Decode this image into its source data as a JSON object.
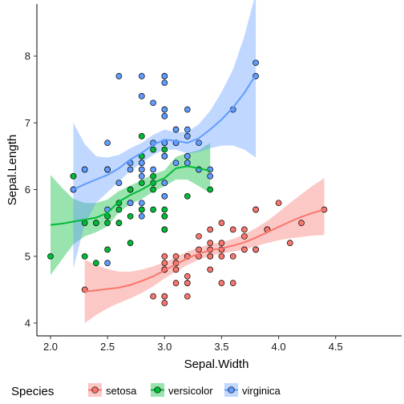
{
  "chart_data": {
    "type": "scatter",
    "xlabel": "Sepal.Width",
    "ylabel": "Sepal.Length",
    "xlim": [
      1.9,
      4.5
    ],
    "ylim": [
      3.8,
      8.4
    ],
    "xticks": [
      "2.0",
      "2.5",
      "3.0",
      "3.5",
      "4.0",
      "4.5"
    ],
    "yticks": [
      "4",
      "5",
      "6",
      "7",
      "8"
    ],
    "grid": false,
    "legend": {
      "title": "Species",
      "placement": "bottom"
    },
    "smoother": "loess with confidence band",
    "series": [
      {
        "name": "setosa",
        "color": "#F8766D",
        "points": [
          [
            2.3,
            4.5
          ],
          [
            2.9,
            4.4
          ],
          [
            3.0,
            4.3
          ],
          [
            3.0,
            4.4
          ],
          [
            3.2,
            4.4
          ],
          [
            3.0,
            4.8
          ],
          [
            3.0,
            4.8
          ],
          [
            3.0,
            4.9
          ],
          [
            3.1,
            4.9
          ],
          [
            3.1,
            4.9
          ],
          [
            3.1,
            4.8
          ],
          [
            3.0,
            5.0
          ],
          [
            3.2,
            5.0
          ],
          [
            3.2,
            4.7
          ],
          [
            3.2,
            4.6
          ],
          [
            3.1,
            4.6
          ],
          [
            3.2,
            5.0
          ],
          [
            3.3,
            5.0
          ],
          [
            3.4,
            5.0
          ],
          [
            3.4,
            4.8
          ],
          [
            3.4,
            5.1
          ],
          [
            3.3,
            5.1
          ],
          [
            3.5,
            5.0
          ],
          [
            3.5,
            5.1
          ],
          [
            3.5,
            5.2
          ],
          [
            3.4,
            5.2
          ],
          [
            3.4,
            5.4
          ],
          [
            3.5,
            5.5
          ],
          [
            3.6,
            5.0
          ],
          [
            3.6,
            4.6
          ],
          [
            3.7,
            5.1
          ],
          [
            3.7,
            5.4
          ],
          [
            3.7,
            5.3
          ],
          [
            3.8,
            5.1
          ],
          [
            3.8,
            5.1
          ],
          [
            3.8,
            5.7
          ],
          [
            3.9,
            5.4
          ],
          [
            3.9,
            5.4
          ],
          [
            3.8,
            5.7
          ],
          [
            4.0,
            5.8
          ],
          [
            4.1,
            5.2
          ],
          [
            4.2,
            5.5
          ],
          [
            4.4,
            5.7
          ],
          [
            3.6,
            5.4
          ],
          [
            3.5,
            4.6
          ],
          [
            3.1,
            5.0
          ],
          [
            3.0,
            4.4
          ],
          [
            3.2,
            4.6
          ],
          [
            3.3,
            5.3
          ],
          [
            3.4,
            5.0
          ]
        ],
        "smooth": [
          [
            2.3,
            4.47
          ],
          [
            2.4,
            4.49
          ],
          [
            2.5,
            4.51
          ],
          [
            2.6,
            4.53
          ],
          [
            2.7,
            4.57
          ],
          [
            2.8,
            4.63
          ],
          [
            2.9,
            4.7
          ],
          [
            3.0,
            4.79
          ],
          [
            3.1,
            4.88
          ],
          [
            3.2,
            4.97
          ],
          [
            3.3,
            5.04
          ],
          [
            3.4,
            5.09
          ],
          [
            3.5,
            5.12
          ],
          [
            3.6,
            5.16
          ],
          [
            3.7,
            5.21
          ],
          [
            3.8,
            5.28
          ],
          [
            3.9,
            5.36
          ],
          [
            4.0,
            5.44
          ],
          [
            4.1,
            5.52
          ],
          [
            4.2,
            5.59
          ],
          [
            4.3,
            5.65
          ],
          [
            4.4,
            5.7
          ]
        ],
        "band": [
          [
            2.3,
            4.0,
            4.95
          ],
          [
            2.4,
            4.12,
            4.87
          ],
          [
            2.5,
            4.22,
            4.81
          ],
          [
            2.6,
            4.3,
            4.77
          ],
          [
            2.7,
            4.37,
            4.77
          ],
          [
            2.8,
            4.45,
            4.8
          ],
          [
            2.9,
            4.55,
            4.85
          ],
          [
            3.0,
            4.67,
            4.91
          ],
          [
            3.1,
            4.77,
            4.99
          ],
          [
            3.2,
            4.87,
            5.07
          ],
          [
            3.3,
            4.95,
            5.13
          ],
          [
            3.4,
            5.01,
            5.18
          ],
          [
            3.5,
            5.04,
            5.21
          ],
          [
            3.6,
            5.07,
            5.26
          ],
          [
            3.7,
            5.1,
            5.33
          ],
          [
            3.8,
            5.15,
            5.42
          ],
          [
            3.9,
            5.2,
            5.53
          ],
          [
            4.0,
            5.24,
            5.66
          ],
          [
            4.1,
            5.27,
            5.8
          ],
          [
            4.2,
            5.29,
            5.93
          ],
          [
            4.3,
            5.31,
            6.06
          ],
          [
            4.4,
            5.32,
            6.17
          ]
        ]
      },
      {
        "name": "versicolor",
        "color": "#00BA38",
        "points": [
          [
            2.0,
            5.0
          ],
          [
            2.2,
            6.2
          ],
          [
            2.2,
            6.0
          ],
          [
            2.3,
            5.5
          ],
          [
            2.3,
            6.3
          ],
          [
            2.3,
            5.0
          ],
          [
            2.4,
            5.5
          ],
          [
            2.4,
            5.5
          ],
          [
            2.4,
            4.9
          ],
          [
            2.5,
            5.5
          ],
          [
            2.5,
            5.6
          ],
          [
            2.5,
            6.3
          ],
          [
            2.6,
            5.8
          ],
          [
            2.6,
            5.5
          ],
          [
            2.6,
            5.7
          ],
          [
            2.7,
            5.2
          ],
          [
            2.7,
            5.8
          ],
          [
            2.7,
            6.0
          ],
          [
            2.7,
            5.6
          ],
          [
            2.8,
            5.7
          ],
          [
            2.8,
            6.5
          ],
          [
            2.8,
            6.1
          ],
          [
            2.8,
            6.8
          ],
          [
            2.9,
            6.1
          ],
          [
            2.9,
            6.2
          ],
          [
            2.9,
            6.0
          ],
          [
            2.9,
            5.7
          ],
          [
            3.0,
            5.9
          ],
          [
            3.0,
            5.6
          ],
          [
            3.0,
            5.6
          ],
          [
            3.0,
            6.1
          ],
          [
            3.0,
            5.4
          ],
          [
            3.0,
            6.7
          ],
          [
            3.0,
            5.7
          ],
          [
            3.1,
            6.9
          ],
          [
            3.1,
            6.7
          ],
          [
            3.2,
            6.4
          ],
          [
            3.2,
            5.9
          ],
          [
            3.3,
            6.3
          ],
          [
            3.4,
            6.0
          ],
          [
            2.9,
            6.6
          ],
          [
            2.8,
            6.4
          ],
          [
            2.5,
            6.3
          ],
          [
            3.0,
            6.6
          ],
          [
            2.8,
            5.7
          ],
          [
            2.6,
            5.5
          ],
          [
            2.7,
            6.0
          ],
          [
            3.0,
            5.4
          ],
          [
            2.2,
            6.2
          ],
          [
            2.5,
            5.1
          ]
        ],
        "smooth": [
          [
            2.0,
            5.47
          ],
          [
            2.1,
            5.49
          ],
          [
            2.2,
            5.52
          ],
          [
            2.3,
            5.55
          ],
          [
            2.4,
            5.58
          ],
          [
            2.5,
            5.65
          ],
          [
            2.6,
            5.82
          ],
          [
            2.7,
            5.92
          ],
          [
            2.8,
            6.0
          ],
          [
            2.9,
            6.1
          ],
          [
            3.0,
            6.17
          ],
          [
            3.1,
            6.32
          ],
          [
            3.2,
            6.35
          ],
          [
            3.3,
            6.32
          ],
          [
            3.4,
            6.28
          ]
        ],
        "band": [
          [
            2.0,
            4.72,
            6.22
          ],
          [
            2.1,
            4.95,
            6.03
          ],
          [
            2.2,
            5.18,
            5.86
          ],
          [
            2.3,
            5.3,
            5.8
          ],
          [
            2.4,
            5.36,
            5.8
          ],
          [
            2.5,
            5.45,
            5.85
          ],
          [
            2.6,
            5.66,
            5.98
          ],
          [
            2.7,
            5.78,
            6.06
          ],
          [
            2.8,
            5.86,
            6.14
          ],
          [
            2.9,
            5.97,
            6.23
          ],
          [
            3.0,
            6.05,
            6.29
          ],
          [
            3.1,
            6.15,
            6.49
          ],
          [
            3.2,
            6.15,
            6.55
          ],
          [
            3.3,
            6.05,
            6.59
          ],
          [
            3.4,
            5.95,
            6.7
          ]
        ]
      },
      {
        "name": "virginica",
        "color": "#619CFF",
        "points": [
          [
            2.2,
            6.0
          ],
          [
            2.5,
            4.9
          ],
          [
            2.5,
            5.7
          ],
          [
            2.5,
            6.3
          ],
          [
            2.5,
            6.7
          ],
          [
            2.6,
            7.7
          ],
          [
            2.6,
            6.1
          ],
          [
            2.7,
            5.8
          ],
          [
            2.7,
            6.3
          ],
          [
            2.7,
            5.8
          ],
          [
            2.7,
            6.4
          ],
          [
            2.8,
            7.7
          ],
          [
            2.8,
            6.3
          ],
          [
            2.8,
            6.4
          ],
          [
            2.8,
            7.4
          ],
          [
            2.8,
            5.8
          ],
          [
            2.8,
            6.2
          ],
          [
            2.8,
            5.6
          ],
          [
            2.9,
            6.3
          ],
          [
            2.9,
            7.3
          ],
          [
            3.0,
            7.7
          ],
          [
            3.0,
            7.2
          ],
          [
            3.0,
            6.5
          ],
          [
            3.0,
            6.1
          ],
          [
            3.0,
            5.9
          ],
          [
            3.0,
            7.6
          ],
          [
            3.0,
            7.1
          ],
          [
            3.0,
            6.7
          ],
          [
            3.0,
            6.5
          ],
          [
            3.1,
            6.9
          ],
          [
            3.1,
            6.7
          ],
          [
            3.1,
            6.4
          ],
          [
            3.2,
            7.2
          ],
          [
            3.2,
            6.9
          ],
          [
            3.2,
            6.4
          ],
          [
            3.2,
            6.8
          ],
          [
            3.3,
            6.7
          ],
          [
            3.3,
            6.3
          ],
          [
            3.4,
            6.3
          ],
          [
            3.4,
            6.2
          ],
          [
            3.6,
            7.2
          ],
          [
            3.8,
            7.7
          ],
          [
            3.8,
            7.9
          ],
          [
            2.9,
            6.7
          ],
          [
            2.6,
            6.1
          ],
          [
            2.8,
            6.3
          ],
          [
            3.0,
            7.7
          ],
          [
            3.2,
            6.5
          ],
          [
            2.3,
            6.3
          ],
          [
            3.0,
            7.2
          ]
        ],
        "smooth": [
          [
            2.2,
            6.0
          ],
          [
            2.3,
            6.08
          ],
          [
            2.4,
            6.15
          ],
          [
            2.5,
            6.22
          ],
          [
            2.6,
            6.32
          ],
          [
            2.7,
            6.45
          ],
          [
            2.8,
            6.55
          ],
          [
            2.9,
            6.67
          ],
          [
            3.0,
            6.75
          ],
          [
            3.1,
            6.73
          ],
          [
            3.2,
            6.7
          ],
          [
            3.3,
            6.77
          ],
          [
            3.4,
            6.9
          ],
          [
            3.5,
            7.05
          ],
          [
            3.6,
            7.23
          ],
          [
            3.7,
            7.45
          ],
          [
            3.8,
            7.72
          ]
        ],
        "band": [
          [
            2.2,
            4.82,
            7.0
          ],
          [
            2.3,
            5.48,
            6.68
          ],
          [
            2.4,
            5.8,
            6.5
          ],
          [
            2.5,
            5.96,
            6.48
          ],
          [
            2.6,
            6.12,
            6.52
          ],
          [
            2.7,
            6.28,
            6.62
          ],
          [
            2.8,
            6.4,
            6.7
          ],
          [
            2.9,
            6.52,
            6.82
          ],
          [
            3.0,
            6.6,
            6.9
          ],
          [
            3.1,
            6.6,
            6.86
          ],
          [
            3.2,
            6.54,
            6.86
          ],
          [
            3.3,
            6.56,
            6.98
          ],
          [
            3.4,
            6.62,
            7.18
          ],
          [
            3.5,
            6.66,
            7.46
          ],
          [
            3.6,
            6.66,
            7.8
          ],
          [
            3.7,
            6.6,
            8.3
          ],
          [
            3.8,
            6.48,
            8.95
          ]
        ]
      }
    ]
  }
}
